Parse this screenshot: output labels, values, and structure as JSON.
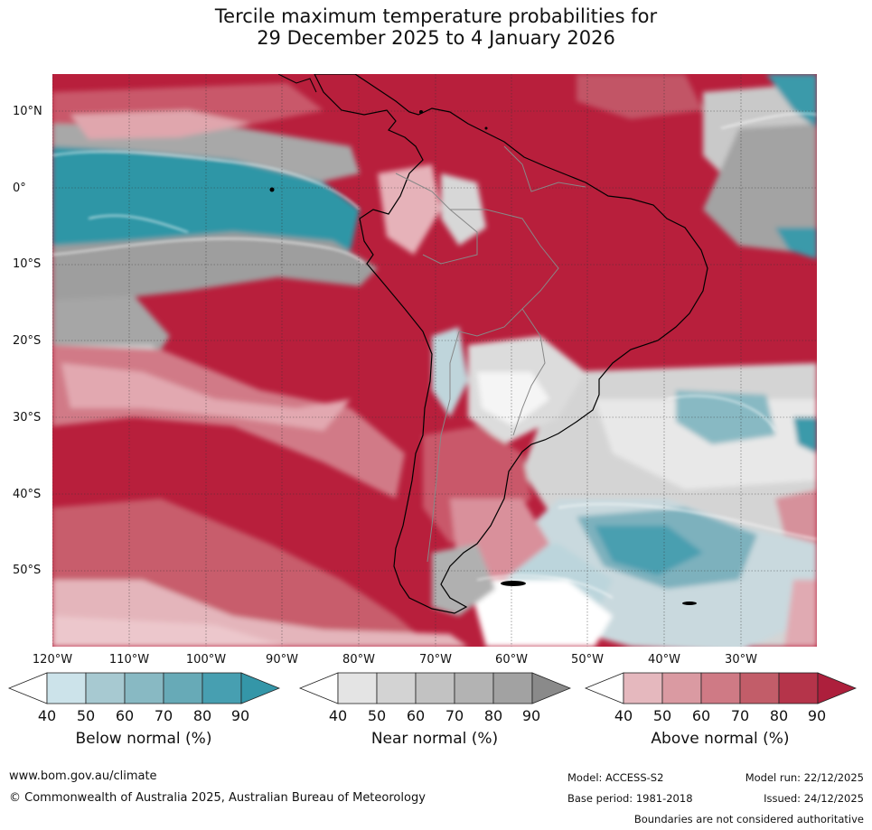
{
  "title": {
    "line1": "Tercile maximum temperature probabilities for",
    "line2": "29 December 2025 to 4 January 2026"
  },
  "map": {
    "lat_labels": [
      "10°N",
      "0°",
      "10°S",
      "20°S",
      "30°S",
      "40°S",
      "50°S"
    ],
    "lon_labels": [
      "120°W",
      "110°W",
      "100°W",
      "90°W",
      "80°W",
      "70°W",
      "60°W",
      "50°W",
      "40°W",
      "30°W"
    ]
  },
  "colorbars": [
    {
      "title": "Below normal (%)",
      "ticks": [
        "40",
        "50",
        "60",
        "70",
        "80",
        "90"
      ],
      "colors": [
        "#ffffff",
        "#cce3ea",
        "#a7c9d1",
        "#88b9c3",
        "#67aab7",
        "#479fb1",
        "#3496a8"
      ]
    },
    {
      "title": "Near normal (%)",
      "ticks": [
        "40",
        "50",
        "60",
        "70",
        "80",
        "90"
      ],
      "colors": [
        "#ffffff",
        "#e4e4e4",
        "#d3d3d3",
        "#c2c2c2",
        "#b3b3b3",
        "#a2a2a2",
        "#8a8a8a"
      ]
    },
    {
      "title": "Above normal (%)",
      "ticks": [
        "40",
        "50",
        "60",
        "70",
        "80",
        "90"
      ],
      "colors": [
        "#ffffff",
        "#e5b8be",
        "#da9aa2",
        "#cf7a85",
        "#c25d69",
        "#b5344a",
        "#ad1f3c"
      ]
    }
  ],
  "footer": {
    "website": "www.bom.gov.au/climate",
    "copyright": "© Commonwealth of Australia 2025, Australian Bureau of Meteorology",
    "model": "Model: ACCESS-S2",
    "base_period": "Base period: 1981-2018",
    "model_run": "Model run: 22/12/2025",
    "issued": "Issued: 24/12/2025",
    "disclaimer": "Boundaries are not considered authoritative"
  }
}
